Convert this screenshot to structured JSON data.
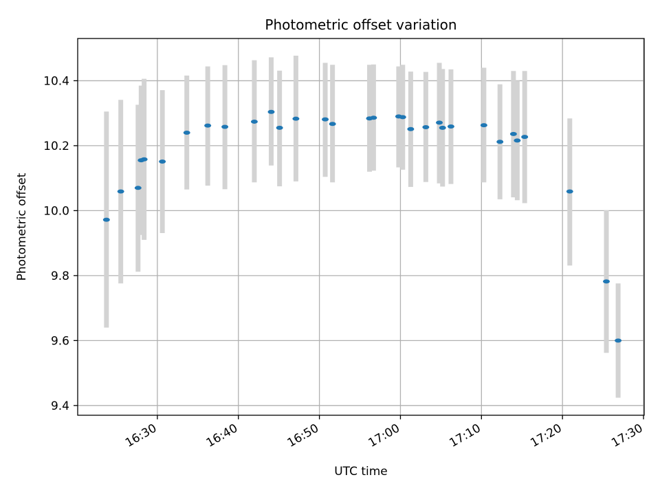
{
  "chart_data": {
    "type": "scatter",
    "title": "Photometric offset variation",
    "xlabel": "UTC time",
    "ylabel": "Photometric offset",
    "x_axis_kind": "time",
    "xlim": [
      "16:20:10",
      "17:30:05"
    ],
    "ylim": [
      9.37,
      10.53
    ],
    "x_ticks": [
      "16:30",
      "16:40",
      "16:50",
      "17:00",
      "17:10",
      "17:20",
      "17:30"
    ],
    "y_ticks": [
      9.4,
      9.6,
      9.8,
      10.0,
      10.2,
      10.4
    ],
    "y_tick_labels": [
      "9.4",
      "9.6",
      "9.8",
      "10.0",
      "10.2",
      "10.4"
    ],
    "grid": true,
    "marker_color": "#1f77b4",
    "errorbar_color": "#d3d3d3",
    "points": [
      {
        "x": "16:23:43",
        "y": 9.972,
        "ylo": 9.64,
        "yhi": 10.305
      },
      {
        "x": "16:25:29",
        "y": 10.059,
        "ylo": 9.776,
        "yhi": 10.341
      },
      {
        "x": "16:27:37",
        "y": 10.07,
        "ylo": 9.812,
        "yhi": 10.326
      },
      {
        "x": "16:28:00",
        "y": 10.155,
        "ylo": 9.925,
        "yhi": 10.385
      },
      {
        "x": "16:28:22",
        "y": 10.158,
        "ylo": 9.91,
        "yhi": 10.406
      },
      {
        "x": "16:30:37",
        "y": 10.151,
        "ylo": 9.931,
        "yhi": 10.371
      },
      {
        "x": "16:33:38",
        "y": 10.24,
        "ylo": 10.065,
        "yhi": 10.416
      },
      {
        "x": "16:36:13",
        "y": 10.262,
        "ylo": 10.077,
        "yhi": 10.444
      },
      {
        "x": "16:38:20",
        "y": 10.258,
        "ylo": 10.066,
        "yhi": 10.448
      },
      {
        "x": "16:41:58",
        "y": 10.274,
        "ylo": 10.087,
        "yhi": 10.463
      },
      {
        "x": "16:44:03",
        "y": 10.304,
        "ylo": 10.139,
        "yhi": 10.472
      },
      {
        "x": "16:45:05",
        "y": 10.255,
        "ylo": 10.075,
        "yhi": 10.431
      },
      {
        "x": "16:47:06",
        "y": 10.283,
        "ylo": 10.09,
        "yhi": 10.477
      },
      {
        "x": "16:50:43",
        "y": 10.281,
        "ylo": 10.104,
        "yhi": 10.455
      },
      {
        "x": "16:51:37",
        "y": 10.267,
        "ylo": 10.087,
        "yhi": 10.449
      },
      {
        "x": "16:56:11",
        "y": 10.284,
        "ylo": 10.12,
        "yhi": 10.449
      },
      {
        "x": "16:56:41",
        "y": 10.286,
        "ylo": 10.123,
        "yhi": 10.45
      },
      {
        "x": "16:59:47",
        "y": 10.29,
        "ylo": 10.133,
        "yhi": 10.444
      },
      {
        "x": "17:00:17",
        "y": 10.288,
        "ylo": 10.126,
        "yhi": 10.449
      },
      {
        "x": "17:01:16",
        "y": 10.251,
        "ylo": 10.073,
        "yhi": 10.428
      },
      {
        "x": "17:03:08",
        "y": 10.257,
        "ylo": 10.088,
        "yhi": 10.427
      },
      {
        "x": "17:04:48",
        "y": 10.271,
        "ylo": 10.084,
        "yhi": 10.455
      },
      {
        "x": "17:05:12",
        "y": 10.255,
        "ylo": 10.074,
        "yhi": 10.436
      },
      {
        "x": "17:06:14",
        "y": 10.259,
        "ylo": 10.082,
        "yhi": 10.435
      },
      {
        "x": "17:10:18",
        "y": 10.263,
        "ylo": 10.087,
        "yhi": 10.44
      },
      {
        "x": "17:12:17",
        "y": 10.212,
        "ylo": 10.035,
        "yhi": 10.389
      },
      {
        "x": "17:13:57",
        "y": 10.236,
        "ylo": 10.041,
        "yhi": 10.43
      },
      {
        "x": "17:14:25",
        "y": 10.216,
        "ylo": 10.032,
        "yhi": 10.4
      },
      {
        "x": "17:15:20",
        "y": 10.227,
        "ylo": 10.023,
        "yhi": 10.43
      },
      {
        "x": "17:20:54",
        "y": 10.059,
        "ylo": 9.831,
        "yhi": 10.284
      },
      {
        "x": "17:25:25",
        "y": 9.782,
        "ylo": 9.562,
        "yhi": 10.001
      },
      {
        "x": "17:26:52",
        "y": 9.6,
        "ylo": 9.424,
        "yhi": 9.776
      }
    ]
  }
}
